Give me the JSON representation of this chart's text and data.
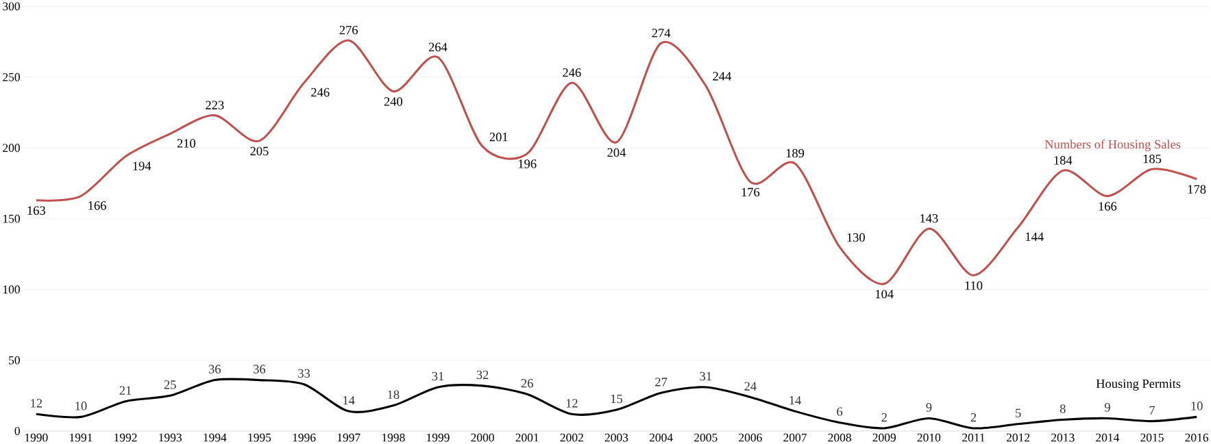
{
  "chart_data": {
    "type": "line",
    "categories": [
      "1990",
      "1991",
      "1992",
      "1993",
      "1994",
      "1995",
      "1996",
      "1997",
      "1998",
      "1999",
      "2000",
      "2001",
      "2002",
      "2003",
      "2004",
      "2005",
      "2006",
      "2007",
      "2008",
      "2009",
      "2010",
      "2011",
      "2012",
      "2013",
      "2014",
      "2015",
      "2016"
    ],
    "series": [
      {
        "name": "Numbers of Housing Sales",
        "color": "#c0504d",
        "values": [
          163,
          166,
          194,
          210,
          223,
          205,
          246,
          276,
          240,
          264,
          201,
          196,
          246,
          204,
          274,
          244,
          176,
          189,
          130,
          104,
          143,
          110,
          144,
          184,
          166,
          185,
          178
        ]
      },
      {
        "name": "Housing Permits",
        "color": "#000000",
        "values": [
          12,
          10,
          21,
          25,
          36,
          36,
          33,
          14,
          18,
          31,
          32,
          26,
          12,
          15,
          27,
          31,
          24,
          14,
          6,
          2,
          9,
          2,
          5,
          8,
          9,
          7,
          10
        ]
      }
    ],
    "ylim": [
      0,
      300
    ],
    "yticks": [
      0,
      50,
      100,
      150,
      200,
      250,
      300
    ],
    "grid": "y",
    "data_labels": true,
    "marker": "none",
    "line_style": "solid"
  }
}
